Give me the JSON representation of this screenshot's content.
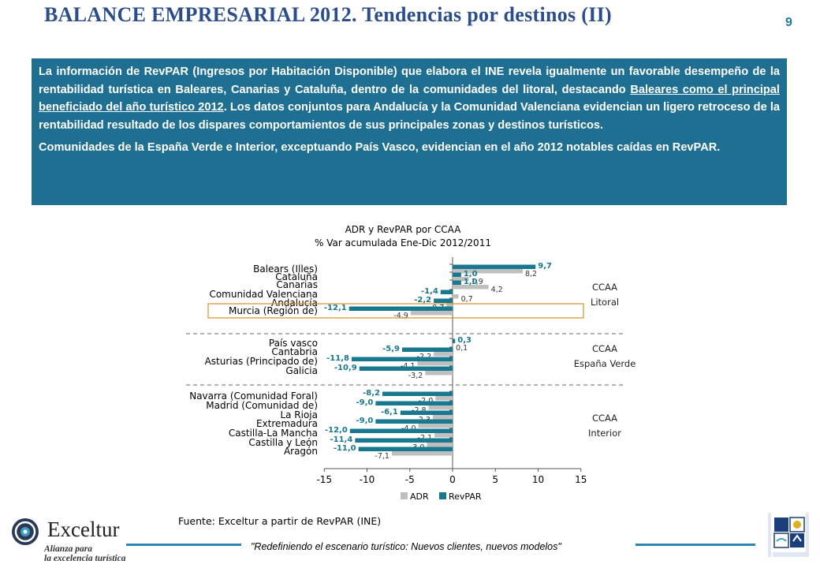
{
  "page": {
    "title": "BALANCE EMPRESARIAL 2012. Tendencias por destinos (II)",
    "page_number": "9"
  },
  "info": {
    "p1_a": "La información de RevPAR (Ingresos por Habitación Disponible) que elabora el INE revela igualmente un favorable desempeño de la rentabilidad turística en Baleares, Canarias y Cataluña, dentro de la comunidades del litoral, destacando ",
    "p1_link": "Baleares como el principal beneficiado del año turístico 2012",
    "p1_b": ". Los datos conjuntos para Andalucía y la Comunidad Valenciana evidencian un ligero retroceso de la rentabilidad resultado de los dispares comportamientos de sus principales zonas y destinos turísticos.",
    "p2": "Comunidades de la España Verde e Interior, exceptuando País Vasco, evidencian en el año 2012 notables caídas en RevPAR."
  },
  "chart_data": {
    "type": "bar",
    "orientation": "horizontal",
    "title": "ADR y RevPAR por CCAA",
    "subtitle": "% Var acumulada Ene-Dic 2012/2011",
    "categories": [
      "Balears (Illes)",
      "Cataluña",
      "Canarias",
      "Comunidad Valenciana",
      "Andalucía",
      "Murcia (Región de)",
      "País vasco",
      "Cantabria",
      "Asturias (Principado de)",
      "Galicia",
      "Navarra (Comunidad Foral)",
      "Madrid (Comunidad de)",
      "La Rioja",
      "Extremadura",
      "Castilla-La Mancha",
      "Castilla y León",
      "Aragón"
    ],
    "series": [
      {
        "name": "ADR",
        "color": "#bfbfbf",
        "values": [
          8.2,
          1.9,
          4.2,
          0.7,
          -0.7,
          -4.9,
          0.1,
          -2.2,
          -4.1,
          -3.2,
          -2.0,
          -2.8,
          -2.3,
          -4.0,
          -2.1,
          -3.0,
          -7.1
        ],
        "labels": [
          "8,2",
          "1,9",
          "4,2",
          "0,7",
          "-0,7",
          "-4,9",
          "0,1",
          "-2,2",
          "-4,1",
          "-3,2",
          "-2,0",
          "-2,8",
          "-2,3",
          "-4,0",
          "-2,1",
          "-3,0",
          "-7,1"
        ]
      },
      {
        "name": "RevPAR",
        "color": "#17788f",
        "values": [
          9.7,
          1.0,
          1.0,
          -1.4,
          -2.2,
          -12.1,
          0.3,
          -5.9,
          -11.8,
          -10.9,
          -8.2,
          -9.0,
          -6.1,
          -9.0,
          -12.0,
          -11.4,
          -11.0
        ],
        "labels": [
          "9,7",
          "1,0",
          "1,0",
          "-1,4",
          "-2,2",
          "-12,1",
          "0,3",
          "-5,9",
          "-11,8",
          "-10,9",
          "-8,2",
          "-9,0",
          "-6,1",
          "-9,0",
          "-12,0",
          "-11,4",
          "-11,0"
        ]
      }
    ],
    "xlim": [
      -15,
      15
    ],
    "xticks": [
      "-15",
      "-10",
      "-5",
      "0",
      "5",
      "10",
      "15"
    ],
    "groups": [
      {
        "label_1": "CCAA",
        "label_2": "Litoral"
      },
      {
        "label_1": "CCAA",
        "label_2": "España Verde"
      },
      {
        "label_1": "CCAA",
        "label_2": "Interior"
      }
    ],
    "legend_position": "bottom"
  },
  "source": "Fuente: Exceltur a partir de RevPAR (INE)",
  "footer": "\"Redefiniendo el escenario turístico: Nuevos clientes, nuevos modelos\"",
  "logo": {
    "name": "Exceltur",
    "tagline_1": "Alianza para",
    "tagline_2": "la excelencia turística"
  },
  "colors": {
    "title": "#2b4d8c",
    "info_bg": "#1f6f92",
    "adr": "#bfbfbf",
    "revpar": "#17788f",
    "highlight_box": "#d9902a"
  }
}
